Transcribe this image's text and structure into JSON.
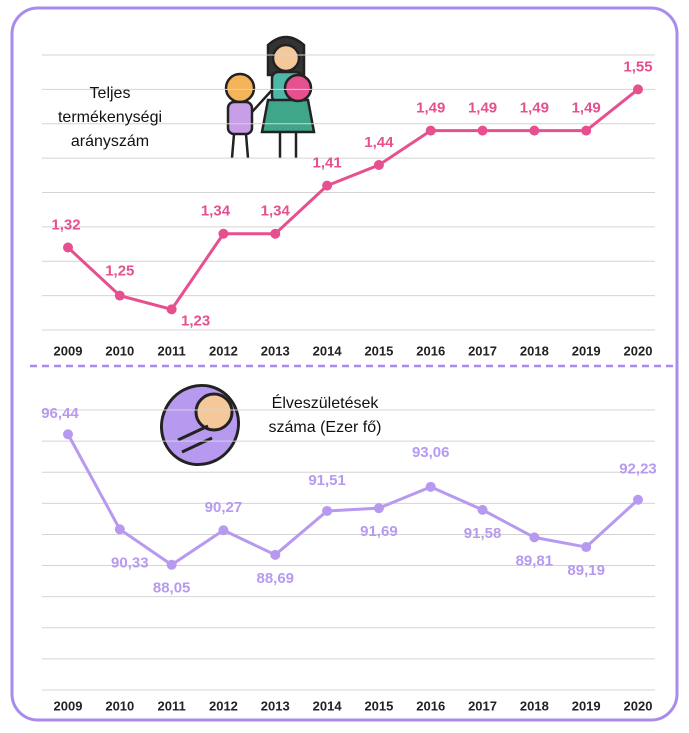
{
  "chart_data": [
    {
      "type": "line",
      "annotation": [
        "Teljes",
        "termékenységi",
        "arányszám"
      ],
      "categories": [
        "2009",
        "2010",
        "2011",
        "2012",
        "2013",
        "2014",
        "2015",
        "2016",
        "2017",
        "2018",
        "2019",
        "2020"
      ],
      "series": [
        {
          "color": "#e6508f",
          "values": [
            1.32,
            1.25,
            1.23,
            1.34,
            1.34,
            1.41,
            1.44,
            1.49,
            1.49,
            1.49,
            1.49,
            1.55
          ],
          "value_labels": [
            "1,32",
            "1,25",
            "1,23",
            "1,34",
            "1,34",
            "1,41",
            "1,44",
            "1,49",
            "1,49",
            "1,49",
            "1,49",
            "1,55"
          ]
        }
      ],
      "ylim": [
        1.2,
        1.6
      ],
      "yticks": [
        1.2,
        1.25,
        1.3,
        1.35,
        1.4,
        1.45,
        1.5,
        1.55,
        1.6
      ],
      "grid": true
    },
    {
      "type": "line",
      "annotation": [
        "Élveszületések",
        "száma (Ezer fő)"
      ],
      "categories": [
        "2009",
        "2010",
        "2011",
        "2012",
        "2013",
        "2014",
        "2015",
        "2016",
        "2017",
        "2018",
        "2019",
        "2020"
      ],
      "series": [
        {
          "color": "#b79af0",
          "values": [
            96.44,
            90.33,
            88.05,
            90.27,
            88.69,
            91.51,
            91.69,
            93.06,
            91.58,
            89.81,
            89.19,
            92.23
          ],
          "value_labels": [
            "96,44",
            "90,33",
            "88,05",
            "90,27",
            "88,69",
            "91,51",
            "91,69",
            "93,06",
            "91,58",
            "89,81",
            "89,19",
            "92,23"
          ]
        }
      ],
      "ylim": [
        80,
        98
      ],
      "yticks": [
        80,
        82,
        84,
        86,
        88,
        90,
        92,
        94,
        96,
        98
      ],
      "grid": true
    }
  ]
}
